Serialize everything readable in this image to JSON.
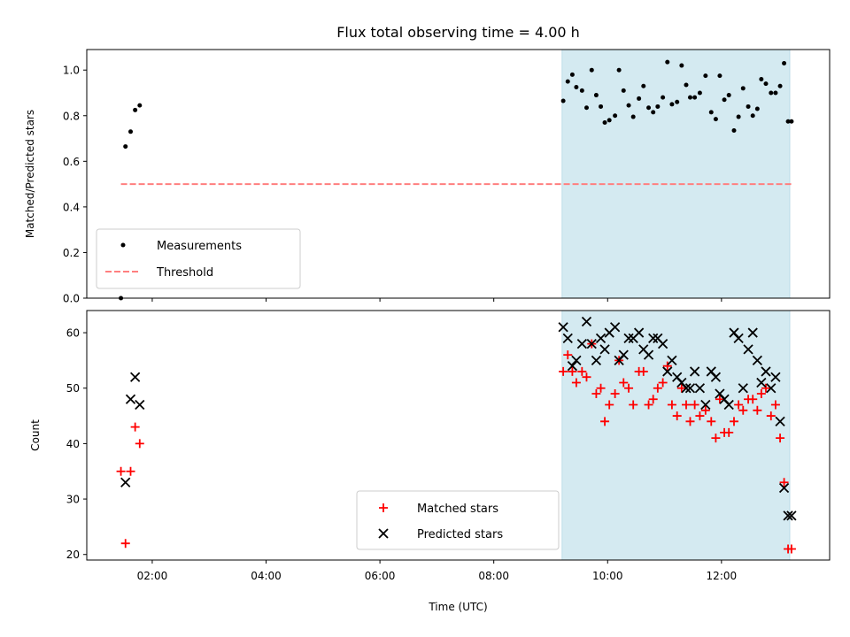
{
  "chart_data": [
    {
      "type": "scatter",
      "title": "Flux total observing time = 4.00 h",
      "xlabel": "",
      "ylabel": "Matched/Predicted stars",
      "ylim": [
        0,
        1.09
      ],
      "yticks": [
        "0.0",
        "0.2",
        "0.4",
        "0.6",
        "0.8",
        "1.0"
      ],
      "xlim_hours": [
        0.85,
        13.9
      ],
      "shaded_span_hours": [
        9.2,
        13.2
      ],
      "shade_color": "#d4eaf1",
      "legend_position": "lower-left",
      "series": [
        {
          "name": "Measurements",
          "marker": "dot",
          "color": "#000000",
          "x_hours": [
            1.45,
            1.53,
            1.62,
            1.7,
            1.78,
            9.22,
            9.3,
            9.38,
            9.45,
            9.55,
            9.63,
            9.72,
            9.8,
            9.88,
            9.95,
            10.03,
            10.13,
            10.2,
            10.28,
            10.37,
            10.45,
            10.55,
            10.63,
            10.72,
            10.8,
            10.88,
            10.97,
            11.05,
            11.13,
            11.22,
            11.3,
            11.38,
            11.45,
            11.53,
            11.62,
            11.72,
            11.82,
            11.9,
            11.97,
            12.05,
            12.13,
            12.22,
            12.3,
            12.38,
            12.47,
            12.55,
            12.63,
            12.7,
            12.78,
            12.87,
            12.95,
            13.03,
            13.1,
            13.17,
            13.23
          ],
          "y": [
            0.0,
            0.665,
            0.73,
            0.825,
            0.845,
            0.865,
            0.95,
            0.98,
            0.925,
            0.91,
            0.835,
            1.0,
            0.89,
            0.84,
            0.77,
            0.78,
            0.8,
            1.0,
            0.91,
            0.845,
            0.795,
            0.875,
            0.93,
            0.835,
            0.815,
            0.84,
            0.88,
            1.035,
            0.85,
            0.86,
            1.02,
            0.935,
            0.88,
            0.88,
            0.9,
            0.975,
            0.815,
            0.785,
            0.975,
            0.87,
            0.89,
            0.735,
            0.795,
            0.92,
            0.84,
            0.8,
            0.83,
            0.96,
            0.94,
            0.9,
            0.9,
            0.93,
            1.03,
            0.775,
            0.775
          ]
        },
        {
          "name": "Threshold",
          "type": "line",
          "style": "dashed",
          "color": "#ff7f7f",
          "x_hours": [
            1.45,
            13.23
          ],
          "y": [
            0.5,
            0.5
          ]
        }
      ]
    },
    {
      "type": "scatter",
      "title": "",
      "xlabel": "Time (UTC)",
      "ylabel": "Count",
      "ylim": [
        19,
        64
      ],
      "yticks": [
        "20",
        "30",
        "40",
        "50",
        "60"
      ],
      "xlim_hours": [
        0.85,
        13.9
      ],
      "xticks_hours": [
        2,
        4,
        6,
        8,
        10,
        12
      ],
      "xtick_labels": [
        "02:00",
        "04:00",
        "06:00",
        "08:00",
        "10:00",
        "12:00"
      ],
      "shaded_span_hours": [
        9.2,
        13.2
      ],
      "shade_color": "#d4eaf1",
      "legend_position": "lower-center",
      "series": [
        {
          "name": "Matched stars",
          "marker": "plus",
          "color": "#ff0000",
          "x_hours": [
            1.45,
            1.53,
            1.62,
            1.7,
            1.78,
            9.22,
            9.3,
            9.38,
            9.45,
            9.55,
            9.63,
            9.72,
            9.8,
            9.88,
            9.95,
            10.03,
            10.13,
            10.2,
            10.28,
            10.37,
            10.45,
            10.55,
            10.63,
            10.72,
            10.8,
            10.88,
            10.97,
            11.05,
            11.13,
            11.22,
            11.3,
            11.38,
            11.45,
            11.53,
            11.62,
            11.72,
            11.82,
            11.9,
            11.97,
            12.05,
            12.13,
            12.22,
            12.3,
            12.38,
            12.47,
            12.55,
            12.63,
            12.7,
            12.78,
            12.87,
            12.95,
            13.03,
            13.1,
            13.17,
            13.23
          ],
          "y": [
            35,
            22,
            35,
            43,
            40,
            53,
            56,
            53,
            51,
            53,
            52,
            58,
            49,
            50,
            44,
            47,
            49,
            55,
            51,
            50,
            47,
            53,
            53,
            47,
            48,
            50,
            51,
            54,
            47,
            45,
            50,
            47,
            44,
            47,
            45,
            46,
            44,
            41,
            48,
            42,
            42,
            44,
            47,
            46,
            48,
            48,
            46,
            49,
            50,
            45,
            47,
            41,
            33,
            21,
            21
          ]
        },
        {
          "name": "Predicted stars",
          "marker": "x",
          "color": "#000000",
          "x_hours": [
            1.53,
            1.62,
            1.7,
            1.78,
            9.22,
            9.3,
            9.38,
            9.45,
            9.55,
            9.63,
            9.72,
            9.8,
            9.88,
            9.95,
            10.03,
            10.13,
            10.2,
            10.28,
            10.37,
            10.45,
            10.55,
            10.63,
            10.72,
            10.8,
            10.88,
            10.97,
            11.05,
            11.13,
            11.22,
            11.3,
            11.38,
            11.45,
            11.53,
            11.62,
            11.72,
            11.82,
            11.9,
            11.97,
            12.05,
            12.13,
            12.22,
            12.3,
            12.38,
            12.47,
            12.55,
            12.63,
            12.7,
            12.78,
            12.87,
            12.95,
            13.03,
            13.1,
            13.17,
            13.23
          ],
          "y": [
            33,
            48,
            52,
            47,
            61,
            59,
            54,
            55,
            58,
            62,
            58,
            55,
            59,
            57,
            60,
            61,
            55,
            56,
            59,
            59,
            60,
            57,
            56,
            59,
            59,
            58,
            53,
            55,
            52,
            51,
            50,
            50,
            53,
            50,
            47,
            53,
            52,
            49,
            48,
            47,
            60,
            59,
            50,
            57,
            60,
            55,
            51,
            53,
            50,
            52,
            44,
            32,
            27,
            27
          ]
        }
      ]
    }
  ]
}
